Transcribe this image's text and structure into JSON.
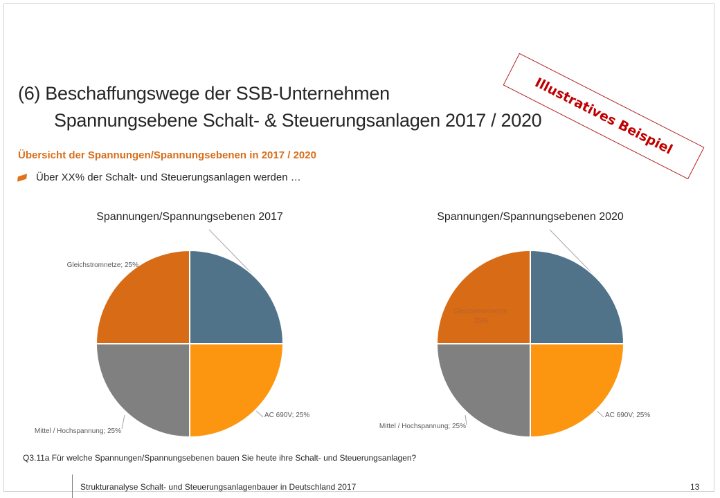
{
  "slide": {
    "title_line1": "(6)  Beschaffungswege der SSB-Unternehmen",
    "title_line2": "Spannungsebene Schalt- & Steuerungsanlagen 2017 / 2020",
    "subtitle": "Übersicht der Spannungen/Spannungsebenen in 2017 / 2020",
    "bullet": "Über XX%  der Schalt- und Steuerungsanlagen werden …",
    "stamp": "Illustratives Beispiel",
    "footnote": "Q3.11a  Für welche Spannungen/Spannungsebenen bauen Sie heute ihre Schalt- und Steuerungsanlagen?",
    "footer": "Strukturanalyse Schalt- und Steuerungsanlagenbauer in Deutschland 2017",
    "page_number": "13"
  },
  "colors": {
    "accent": "#D86E1A",
    "stamp": "#C00000"
  },
  "chart_data": [
    {
      "type": "pie",
      "title": "Spannungen/Spannungsebenen 2017",
      "slices": [
        {
          "name": "",
          "value": 25,
          "label": "",
          "color": "#51738A"
        },
        {
          "name": "AC 690V",
          "value": 25,
          "label": "AC 690V;  25%",
          "color": "#FC9611"
        },
        {
          "name": "Mittel  / Hochspannung",
          "value": 25,
          "label": "Mittel  / Hochspannung;  25%",
          "color": "#808080"
        },
        {
          "name": "Gleichstromnetze",
          "value": 25,
          "label": "Gleichstromnetze;  25%",
          "color": "#D86C16"
        }
      ]
    },
    {
      "type": "pie",
      "title": "Spannungen/Spannungsebenen 2020",
      "slices": [
        {
          "name": "",
          "value": 25,
          "label": "",
          "color": "#51738A"
        },
        {
          "name": "AC 690V",
          "value": 25,
          "label": "AC 690V;  25%",
          "color": "#FC9611"
        },
        {
          "name": "Mittel  / Hochspannung",
          "value": 25,
          "label": "Mittel  / Hochspannung;  25%",
          "color": "#808080"
        },
        {
          "name": "Gleichstromnetze",
          "value": 25,
          "label": "Gleichstromnetze;\n25%",
          "color": "#D86C16"
        }
      ]
    }
  ]
}
